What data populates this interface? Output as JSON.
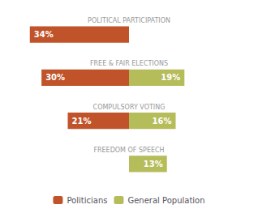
{
  "chart_data": {
    "type": "bar",
    "orientation": "horizontal",
    "categories": [
      "POLITICAL PARTICIPATION",
      "FREE & FAIR ELECTIONS",
      "COMPULSORY VOTING",
      "FREEDOM OF SPEECH"
    ],
    "series": [
      {
        "name": "Politicians",
        "color": "#c0532a",
        "values": [
          34,
          30,
          21,
          0
        ],
        "value_labels": [
          "34%",
          "30%",
          "21%",
          null
        ]
      },
      {
        "name": "General Population",
        "color": "#b5bc5a",
        "values": [
          0,
          19,
          16,
          13
        ],
        "value_labels": [
          null,
          "19%",
          "16%",
          "13%"
        ]
      }
    ],
    "xlim": [
      0,
      42
    ],
    "data_labels": true,
    "tick_labels": false,
    "grid": false,
    "legend": "bottom"
  }
}
